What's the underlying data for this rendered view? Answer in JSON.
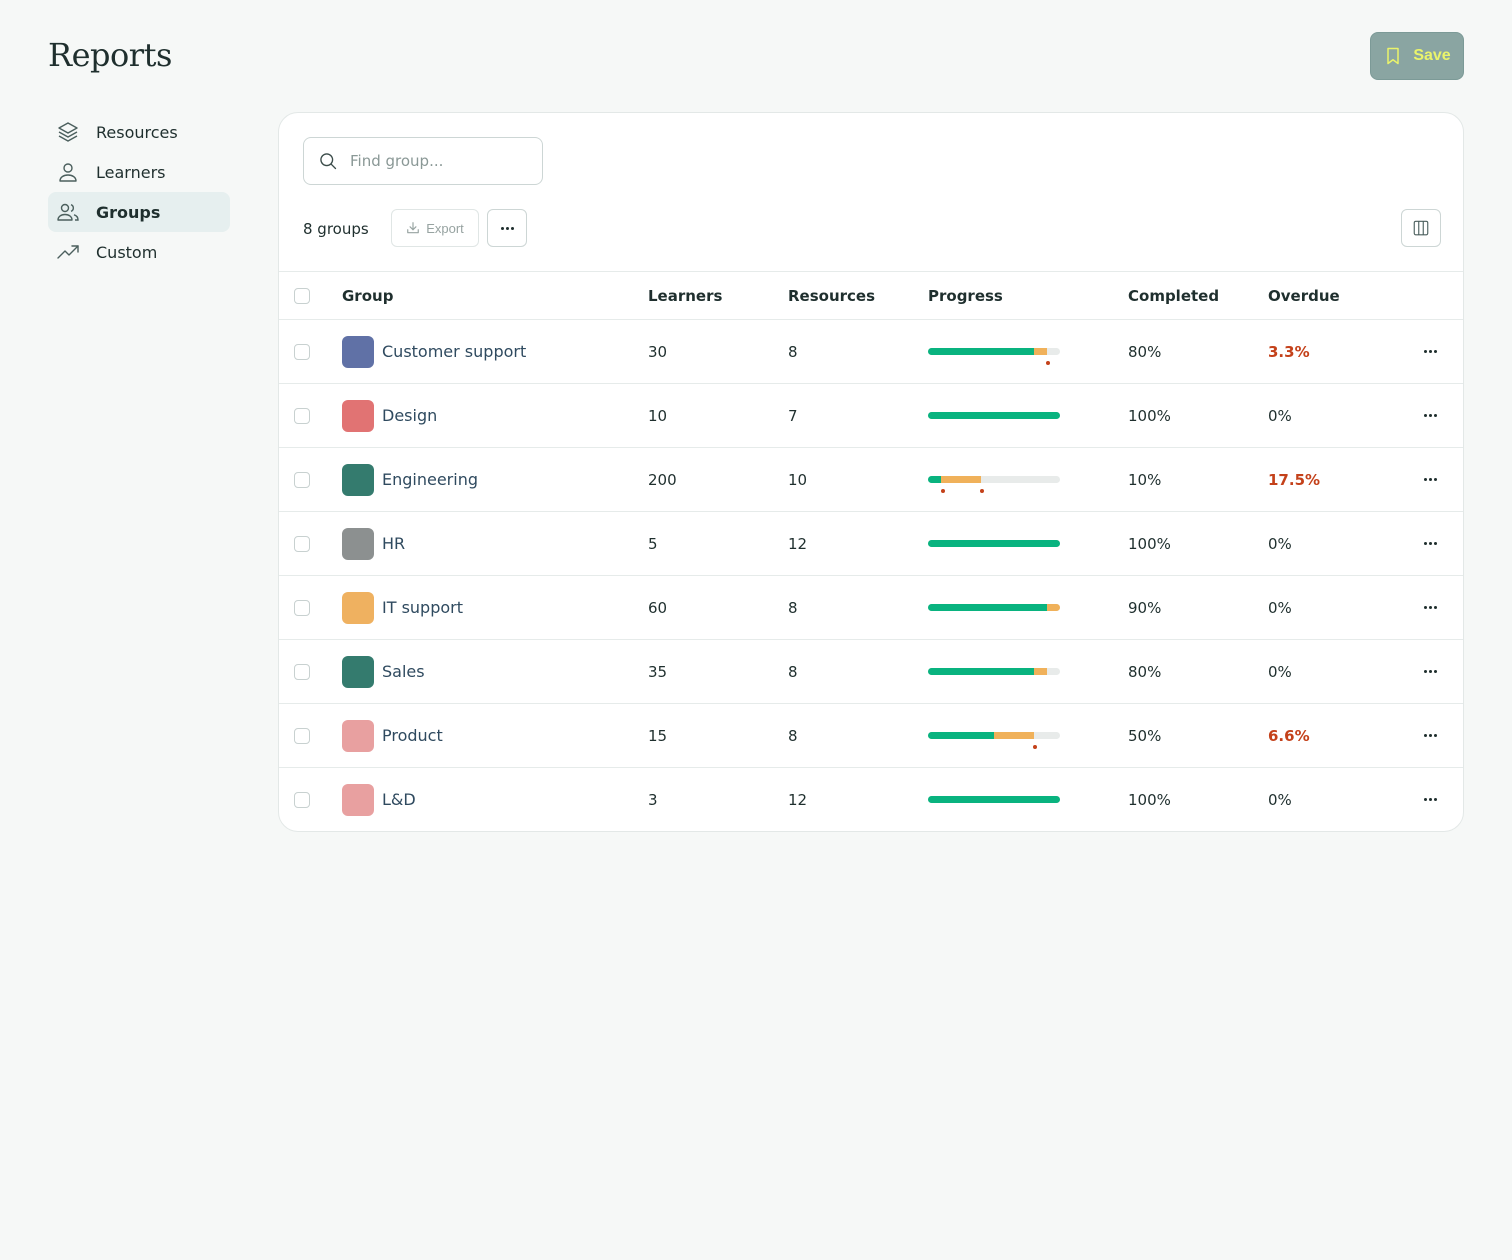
{
  "page": {
    "title": "Reports"
  },
  "header": {
    "save_label": "Save"
  },
  "sidebar": {
    "items": [
      {
        "label": "Resources",
        "icon": "layers-icon",
        "active": false
      },
      {
        "label": "Learners",
        "icon": "user-icon",
        "active": false
      },
      {
        "label": "Groups",
        "icon": "users-icon",
        "active": true
      },
      {
        "label": "Custom",
        "icon": "trending-up-icon",
        "active": false
      }
    ]
  },
  "search": {
    "placeholder": "Find group...",
    "value": ""
  },
  "toolbar": {
    "count_label": "8 groups",
    "export_label": "Export"
  },
  "table": {
    "columns": [
      "Group",
      "Learners",
      "Resources",
      "Progress",
      "Completed",
      "Overdue"
    ],
    "rows": [
      {
        "name": "Customer support",
        "color": "#6071a6",
        "learners": "30",
        "resources": "8",
        "progress": {
          "completed": 0.8,
          "in_progress": 0.1,
          "markers": [
            0.91
          ]
        },
        "completed": "80%",
        "overdue": "3.3%",
        "overdue_alert": true
      },
      {
        "name": "Design",
        "color": "#e17373",
        "learners": "10",
        "resources": "7",
        "progress": {
          "completed": 1.0,
          "in_progress": 0.0,
          "markers": []
        },
        "completed": "100%",
        "overdue": "0%",
        "overdue_alert": false
      },
      {
        "name": "Engineering",
        "color": "#347b6e",
        "learners": "200",
        "resources": "10",
        "progress": {
          "completed": 0.1,
          "in_progress": 0.3,
          "markers": [
            0.11,
            0.41
          ]
        },
        "completed": "10%",
        "overdue": "17.5%",
        "overdue_alert": true
      },
      {
        "name": "HR",
        "color": "#8c9090",
        "learners": "5",
        "resources": "12",
        "progress": {
          "completed": 1.0,
          "in_progress": 0.0,
          "markers": []
        },
        "completed": "100%",
        "overdue": "0%",
        "overdue_alert": false
      },
      {
        "name": "IT support",
        "color": "#efb160",
        "learners": "60",
        "resources": "8",
        "progress": {
          "completed": 0.9,
          "in_progress": 0.1,
          "markers": []
        },
        "completed": "90%",
        "overdue": "0%",
        "overdue_alert": false
      },
      {
        "name": "Sales",
        "color": "#347b6e",
        "learners": "35",
        "resources": "8",
        "progress": {
          "completed": 0.8,
          "in_progress": 0.1,
          "markers": []
        },
        "completed": "80%",
        "overdue": "0%",
        "overdue_alert": false
      },
      {
        "name": "Product",
        "color": "#e8a0a0",
        "learners": "15",
        "resources": "8",
        "progress": {
          "completed": 0.5,
          "in_progress": 0.3,
          "markers": [
            0.81
          ]
        },
        "completed": "50%",
        "overdue": "6.6%",
        "overdue_alert": true
      },
      {
        "name": "L&D",
        "color": "#e8a0a0",
        "learners": "3",
        "resources": "12",
        "progress": {
          "completed": 1.0,
          "in_progress": 0.0,
          "markers": []
        },
        "completed": "100%",
        "overdue": "0%",
        "overdue_alert": false
      }
    ]
  }
}
